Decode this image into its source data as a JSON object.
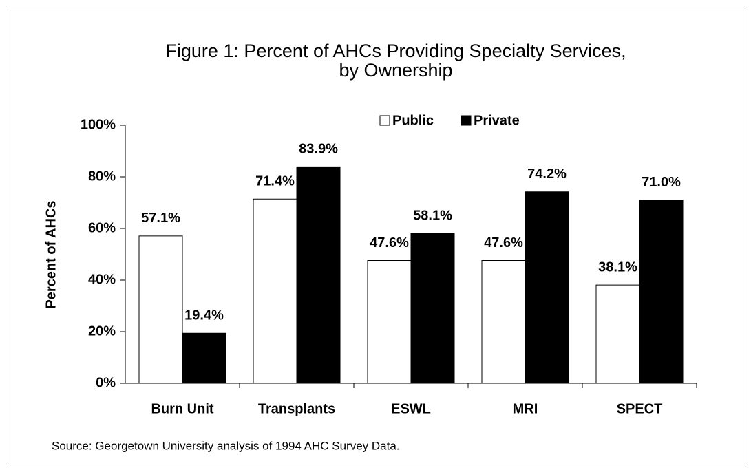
{
  "chart_data": {
    "type": "bar",
    "title": "Figure 1: Percent of AHCs Providing Specialty Services,",
    "subtitle": "by Ownership",
    "y_label": "Percent of AHCs",
    "source": "Source: Georgetown University analysis of 1994 AHC Survey Data.",
    "categories": [
      "Burn Unit",
      "Transplants",
      "ESWL",
      "MRI",
      "SPECT"
    ],
    "series": [
      {
        "name": "Public",
        "color": "#ffffff",
        "values": [
          57.1,
          71.4,
          47.6,
          47.6,
          38.1
        ],
        "value_labels": [
          "57.1%",
          "71.4%",
          "47.6%",
          "47.6%",
          "38.1%"
        ]
      },
      {
        "name": "Private",
        "color": "#000000",
        "values": [
          19.4,
          83.9,
          58.1,
          74.2,
          71.0
        ],
        "value_labels": [
          "19.4%",
          "83.9%",
          "58.1%",
          "74.2%",
          "71.0%"
        ]
      }
    ],
    "ylim": [
      0,
      100
    ],
    "yticks": [
      {
        "value": 0,
        "label": "0%"
      },
      {
        "value": 20,
        "label": "20%"
      },
      {
        "value": 40,
        "label": "40%"
      },
      {
        "value": 60,
        "label": "60%"
      },
      {
        "value": 80,
        "label": "80%"
      },
      {
        "value": 100,
        "label": "100%"
      }
    ],
    "legend": "top"
  }
}
